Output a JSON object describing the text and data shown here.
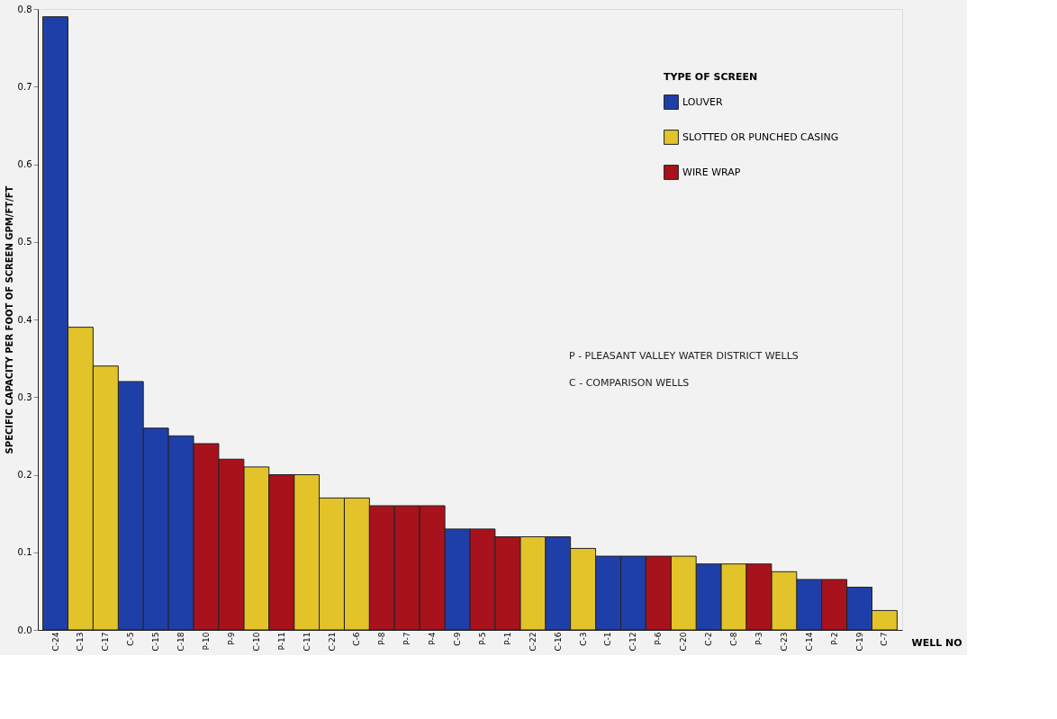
{
  "chart_data": {
    "type": "bar",
    "xlabel": "WELL NO",
    "ylabel": "SPECIFIC CAPACITY PER FOOT OF SCREEN GPM/FT/FT",
    "legend_title": "TYPE OF SCREEN",
    "categories": [
      "C-24",
      "C-13",
      "C-17",
      "C-5",
      "C-15",
      "C-18",
      "P-10",
      "P-9",
      "C-10",
      "P-11",
      "C-11",
      "C-21",
      "C-6",
      "P-8",
      "P-7",
      "P-4",
      "C-9",
      "P-5",
      "P-1",
      "C-22",
      "C-16",
      "C-3",
      "C-1",
      "C-12",
      "P-6",
      "C-20",
      "C-2",
      "C-8",
      "P-3",
      "C-23",
      "C-14",
      "P-2",
      "C-19",
      "C-7"
    ],
    "series": [
      {
        "name": "LOUVER",
        "color": "#1f3fa8",
        "values": [
          0.79,
          null,
          null,
          0.32,
          0.26,
          0.25,
          null,
          null,
          null,
          null,
          null,
          null,
          null,
          null,
          null,
          null,
          0.13,
          null,
          null,
          null,
          0.12,
          null,
          0.095,
          0.095,
          null,
          null,
          0.085,
          null,
          null,
          null,
          0.065,
          null,
          0.055,
          null
        ]
      },
      {
        "name": "SLOTTED OR PUNCHED CASING",
        "color": "#e2c42a",
        "values": [
          null,
          0.39,
          0.34,
          null,
          null,
          null,
          null,
          null,
          0.21,
          null,
          0.2,
          0.17,
          0.17,
          null,
          null,
          null,
          null,
          null,
          null,
          0.12,
          null,
          0.105,
          null,
          null,
          null,
          0.095,
          null,
          0.085,
          null,
          0.075,
          null,
          null,
          null,
          0.025
        ]
      },
      {
        "name": "WIRE WRAP",
        "color": "#a8121c",
        "values": [
          null,
          null,
          null,
          null,
          null,
          null,
          0.24,
          0.22,
          null,
          0.2,
          null,
          null,
          null,
          0.16,
          0.16,
          0.16,
          null,
          0.13,
          0.12,
          null,
          null,
          null,
          null,
          null,
          0.095,
          null,
          null,
          null,
          0.085,
          null,
          null,
          0.065,
          null,
          null
        ]
      }
    ],
    "ylim": [
      0,
      0.8
    ],
    "yticks": [
      {
        "value": 0,
        "label": "0.0"
      },
      {
        "value": 0.1,
        "label": "0.1"
      },
      {
        "value": 0.2,
        "label": "0.2"
      },
      {
        "value": 0.3,
        "label": "0.3"
      },
      {
        "value": 0.4,
        "label": "0.4"
      },
      {
        "value": 0.5,
        "label": "0.5"
      },
      {
        "value": 0.6,
        "label": "0.6"
      },
      {
        "value": 0.7,
        "label": "0.7"
      },
      {
        "value": 0.8,
        "label": "0.8"
      }
    ],
    "grid": false,
    "legend": "top right",
    "annotations": [
      "P - PLEASANT VALLEY WATER DISTRICT WELLS",
      "C - COMPARISON WELLS"
    ]
  }
}
